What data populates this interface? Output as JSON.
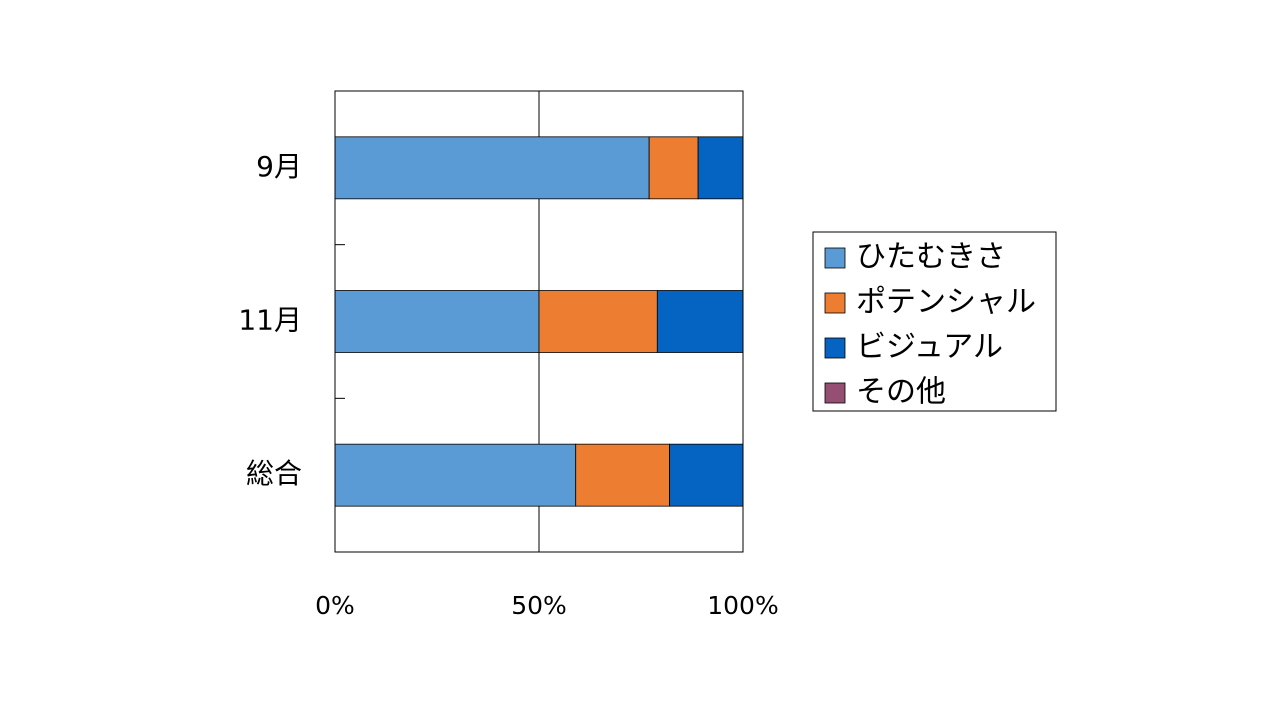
{
  "chart_data": {
    "type": "stacked-bar-horizontal",
    "categories": [
      "9月",
      "11月",
      "総合"
    ],
    "series": [
      {
        "name": "ひたむきさ",
        "color": "#5b9bd5",
        "values": [
          77,
          50,
          59
        ]
      },
      {
        "name": "ポテンシャル",
        "color": "#ed7d31",
        "values": [
          12,
          29,
          23
        ]
      },
      {
        "name": "ビジュアル",
        "color": "#0563c1",
        "values": [
          11,
          21,
          18
        ]
      },
      {
        "name": "その他",
        "color": "#954f72",
        "values": [
          0,
          0,
          0
        ]
      }
    ],
    "xlim": [
      0,
      100
    ],
    "xticks": [
      {
        "value": 0,
        "label": "0%"
      },
      {
        "value": 50,
        "label": "50%"
      },
      {
        "value": 100,
        "label": "100%"
      }
    ],
    "grid": true,
    "legend": "right"
  }
}
